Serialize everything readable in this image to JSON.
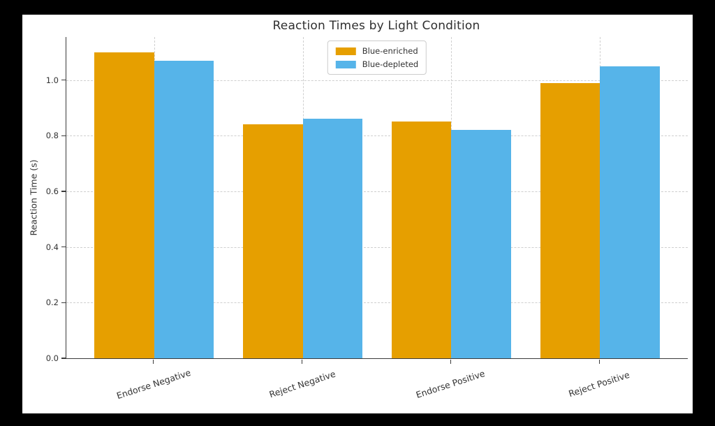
{
  "figure": {
    "title": "Reaction Times by Light Condition",
    "ylabel": "Reaction Time (s)"
  },
  "chart_data": {
    "type": "bar",
    "title": "Reaction Times by Light Condition",
    "xlabel": "",
    "ylabel": "Reaction Time (s)",
    "categories": [
      "Endorse Negative",
      "Reject Negative",
      "Endorse Positive",
      "Reject Positive"
    ],
    "series": [
      {
        "name": "Blue-enriched",
        "color": "#E69F00",
        "values": [
          1.1,
          0.84,
          0.85,
          0.99
        ]
      },
      {
        "name": "Blue-depleted",
        "color": "#56B4E9",
        "values": [
          1.07,
          0.86,
          0.82,
          1.05
        ]
      }
    ],
    "ylim": [
      0,
      1.155
    ],
    "xlim": [
      -0.59,
      3.59
    ],
    "yticks": [
      0.0,
      0.2,
      0.4,
      0.6,
      0.8,
      1.0
    ],
    "ytick_format_decimals": 1,
    "bar_width": 0.4,
    "grid": true,
    "grid_style": "dashed",
    "legend_position": "upper center",
    "x_tick_rotation_deg": 18
  },
  "colors": {
    "outer_background": "#000000",
    "figure_background": "#ffffff",
    "grid": "#cfcfcf",
    "spine": "#3b3b3b",
    "text": "#333333"
  }
}
